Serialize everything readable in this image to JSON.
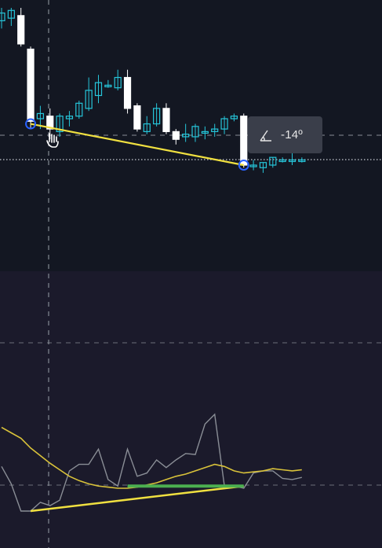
{
  "chart_data": [
    {
      "type": "candlestick",
      "panel": "price",
      "title": "",
      "xlabel": "",
      "ylabel": "",
      "ylim": [
        0,
        100
      ],
      "grid": false,
      "colors": {
        "bull": "#26c6da",
        "bear": "#ffffff",
        "trendline": "#f0e040",
        "crosshair": "#9aa0a8",
        "marker": "#2962ff"
      },
      "candles": [
        {
          "o": 95,
          "h": 100,
          "l": 92,
          "c": 98
        },
        {
          "o": 96,
          "h": 100,
          "l": 93,
          "c": 99
        },
        {
          "o": 97,
          "h": 100,
          "l": 85,
          "c": 86
        },
        {
          "o": 84,
          "h": 85,
          "l": 53,
          "c": 56
        },
        {
          "o": 57,
          "h": 62,
          "l": 53,
          "c": 59
        },
        {
          "o": 58,
          "h": 61,
          "l": 49,
          "c": 53
        },
        {
          "o": 52,
          "h": 59,
          "l": 50,
          "c": 58
        },
        {
          "o": 57,
          "h": 60,
          "l": 54,
          "c": 58
        },
        {
          "o": 58,
          "h": 64,
          "l": 57,
          "c": 63
        },
        {
          "o": 61,
          "h": 73,
          "l": 60,
          "c": 68
        },
        {
          "o": 66,
          "h": 74,
          "l": 63,
          "c": 71
        },
        {
          "o": 70,
          "h": 72,
          "l": 69,
          "c": 70
        },
        {
          "o": 69,
          "h": 76,
          "l": 68,
          "c": 73
        },
        {
          "o": 73,
          "h": 76,
          "l": 59,
          "c": 61
        },
        {
          "o": 62,
          "h": 63,
          "l": 52,
          "c": 53
        },
        {
          "o": 52,
          "h": 58,
          "l": 51,
          "c": 55
        },
        {
          "o": 55,
          "h": 63,
          "l": 54,
          "c": 61
        },
        {
          "o": 61,
          "h": 63,
          "l": 51,
          "c": 52
        },
        {
          "o": 52,
          "h": 53,
          "l": 47,
          "c": 49
        },
        {
          "o": 50,
          "h": 55,
          "l": 48,
          "c": 51
        },
        {
          "o": 50,
          "h": 55,
          "l": 48,
          "c": 54
        },
        {
          "o": 52,
          "h": 54,
          "l": 49,
          "c": 52
        },
        {
          "o": 52,
          "h": 55,
          "l": 50,
          "c": 53
        },
        {
          "o": 53,
          "h": 58,
          "l": 51,
          "c": 57
        },
        {
          "o": 57,
          "h": 59,
          "l": 56,
          "c": 58
        },
        {
          "o": 58,
          "h": 59,
          "l": 38,
          "c": 39
        },
        {
          "o": 39,
          "h": 41,
          "l": 37,
          "c": 39
        },
        {
          "o": 38,
          "h": 40,
          "l": 36,
          "c": 40
        },
        {
          "o": 39,
          "h": 42,
          "l": 38,
          "c": 42
        },
        {
          "o": 41,
          "h": 42,
          "l": 40,
          "c": 41
        },
        {
          "o": 41,
          "h": 46,
          "l": 39,
          "c": 41
        },
        {
          "o": 41,
          "h": 42,
          "l": 40,
          "c": 41
        }
      ],
      "trendline": {
        "from_index": 3,
        "from_value": 55,
        "to_index": 25,
        "to_value": 39
      },
      "markers": [
        {
          "index": 3,
          "value": 55
        },
        {
          "index": 25,
          "value": 39
        }
      ],
      "angle_label": "-14º"
    },
    {
      "type": "line",
      "panel": "indicator",
      "title": "",
      "xlabel": "",
      "ylabel": "",
      "ylim": [
        0,
        100
      ],
      "grid": false,
      "series": [
        {
          "color": "#8a8e96",
          "values": [
            46,
            30,
            5,
            5,
            13,
            10,
            15,
            42,
            48,
            48,
            62,
            34,
            28,
            62,
            37,
            40,
            52,
            45,
            52,
            58,
            57,
            85,
            94,
            28,
            28,
            26,
            40,
            42,
            42,
            35,
            34,
            36
          ]
        },
        {
          "color": "#d9c23a",
          "values": [
            82,
            77,
            72,
            63,
            56,
            49,
            43,
            37,
            33,
            30,
            28,
            27,
            26,
            26,
            27,
            29,
            31,
            34,
            37,
            39,
            42,
            45,
            48,
            46,
            42,
            40,
            41,
            42,
            44,
            43,
            42,
            43
          ]
        }
      ],
      "trendlines": [
        {
          "color": "#f0e040",
          "from_index": 3,
          "from_value": 5,
          "to_index": 25,
          "to_value": 28
        },
        {
          "color": "#4caf50",
          "from_index": 13,
          "from_value": 28,
          "to_index": 25,
          "to_value": 28
        }
      ]
    }
  ]
}
